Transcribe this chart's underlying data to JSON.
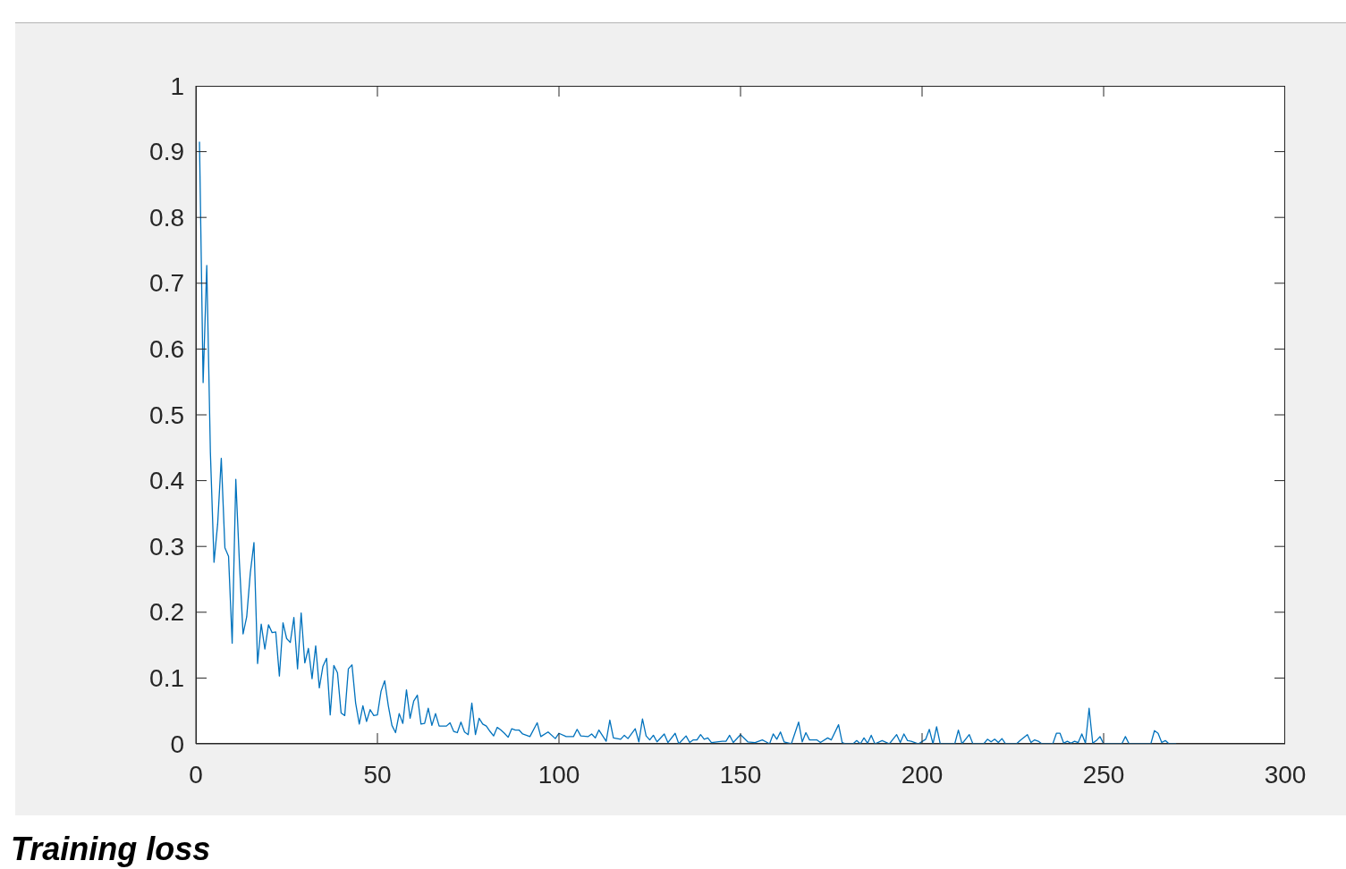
{
  "chart_data": {
    "type": "line",
    "title": "Training loss",
    "x": [
      1,
      2,
      3,
      4,
      5,
      6,
      7,
      8,
      9,
      10,
      11,
      12,
      13,
      14,
      15,
      16,
      17,
      18,
      19,
      20,
      21,
      22,
      23,
      24,
      25,
      26,
      27,
      28,
      29,
      30,
      31,
      32,
      33,
      34,
      35,
      36,
      37,
      38,
      39,
      40,
      41,
      42,
      43,
      44,
      45,
      46,
      47,
      48,
      49,
      50,
      51,
      52,
      53,
      54,
      55,
      56,
      57,
      58,
      59,
      60,
      61,
      62,
      63,
      64,
      65,
      66,
      67,
      68,
      69,
      70,
      71,
      72,
      73,
      74,
      75,
      76,
      77,
      78,
      79,
      80,
      81,
      82,
      83,
      84,
      85,
      86,
      87,
      88,
      89,
      90,
      91,
      92,
      94,
      95,
      97,
      99,
      100,
      102,
      104,
      105,
      106,
      108,
      109,
      110,
      111,
      113,
      114,
      115,
      117,
      118,
      119,
      121,
      122,
      123,
      124,
      125,
      126,
      127,
      129,
      130,
      132,
      133,
      135,
      136,
      137,
      138,
      139,
      140,
      141,
      142,
      145,
      146,
      147,
      148,
      150,
      152,
      154,
      156,
      157,
      158,
      159,
      160,
      161,
      162,
      164,
      166,
      167,
      168,
      169,
      171,
      172,
      174,
      175,
      177,
      178,
      179,
      181,
      182,
      183,
      184,
      185,
      186,
      187,
      189,
      191,
      193,
      194,
      195,
      196,
      197,
      199,
      201,
      202,
      203,
      204,
      205,
      209,
      210,
      211,
      213,
      214,
      217,
      218,
      219,
      220,
      221,
      222,
      223,
      226,
      227,
      229,
      230,
      231,
      232,
      233,
      236,
      237,
      238,
      239,
      240,
      241,
      242,
      243,
      244,
      245,
      246,
      247,
      248,
      249,
      250,
      255,
      256,
      257,
      263,
      264,
      265,
      266,
      267,
      268,
      270
    ],
    "series": [
      {
        "color": "#0072bd",
        "values": [
          0.915,
          0.549,
          0.727,
          0.443,
          0.276,
          0.334,
          0.434,
          0.298,
          0.285,
          0.153,
          0.402,
          0.275,
          0.167,
          0.193,
          0.26,
          0.306,
          0.122,
          0.182,
          0.144,
          0.181,
          0.169,
          0.17,
          0.103,
          0.184,
          0.16,
          0.154,
          0.192,
          0.114,
          0.199,
          0.123,
          0.145,
          0.099,
          0.149,
          0.085,
          0.118,
          0.13,
          0.044,
          0.119,
          0.108,
          0.047,
          0.043,
          0.114,
          0.12,
          0.062,
          0.03,
          0.058,
          0.034,
          0.052,
          0.043,
          0.044,
          0.08,
          0.096,
          0.058,
          0.028,
          0.017,
          0.046,
          0.031,
          0.082,
          0.039,
          0.065,
          0.074,
          0.03,
          0.031,
          0.054,
          0.028,
          0.046,
          0.027,
          0.027,
          0.027,
          0.032,
          0.019,
          0.017,
          0.033,
          0.018,
          0.014,
          0.062,
          0.014,
          0.039,
          0.03,
          0.027,
          0.019,
          0.012,
          0.025,
          0.021,
          0.016,
          0.01,
          0.023,
          0.021,
          0.021,
          0.015,
          0.013,
          0.011,
          0.032,
          0.011,
          0.018,
          0.008,
          0.016,
          0.011,
          0.011,
          0.022,
          0.012,
          0.011,
          0.015,
          0.009,
          0.021,
          0.004,
          0.036,
          0.009,
          0.007,
          0.013,
          0.008,
          0.023,
          0.003,
          0.038,
          0.012,
          0.006,
          0.013,
          0.003,
          0.015,
          0.002,
          0.016,
          0,
          0.012,
          0.002,
          0.006,
          0.006,
          0.014,
          0.007,
          0.009,
          0.002,
          0.004,
          0.004,
          0.013,
          0.002,
          0.014,
          0.003,
          0.002,
          0.006,
          0.003,
          0,
          0.015,
          0.007,
          0.018,
          0.003,
          0,
          0.033,
          0.003,
          0.017,
          0.006,
          0.006,
          0.002,
          0.009,
          0.006,
          0.029,
          0.002,
          0,
          0,
          0.005,
          0,
          0.009,
          0.001,
          0.013,
          0,
          0.005,
          0,
          0.014,
          0.002,
          0.015,
          0.005,
          0.004,
          0,
          0.007,
          0.022,
          0,
          0.026,
          0,
          0,
          0.021,
          0,
          0.014,
          0,
          0,
          0.007,
          0.003,
          0.007,
          0.002,
          0.008,
          0,
          0,
          0.005,
          0.014,
          0.002,
          0.006,
          0.004,
          0,
          0,
          0.016,
          0.016,
          0.001,
          0.004,
          0.001,
          0.004,
          0.002,
          0.015,
          0.001,
          0.054,
          0.001,
          0.005,
          0.011,
          0,
          0,
          0.011,
          0,
          0,
          0.02,
          0.016,
          0.002,
          0.005,
          0,
          0
        ]
      }
    ],
    "xlim": [
      0,
      300
    ],
    "xticks": [
      0,
      50,
      100,
      150,
      200,
      250,
      300
    ],
    "ylim": [
      0,
      1
    ],
    "yticks": [
      0,
      0.1,
      0.2,
      0.3,
      0.4,
      0.5,
      0.6,
      0.7,
      0.8,
      0.9,
      1
    ]
  }
}
